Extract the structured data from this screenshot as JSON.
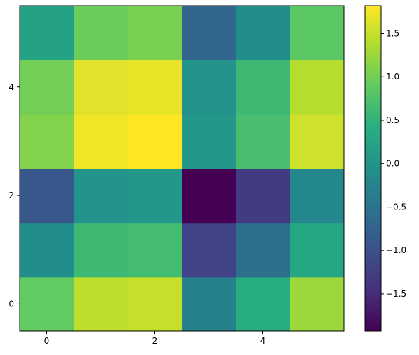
{
  "chart_data": {
    "type": "heatmap",
    "title": "",
    "xlabel": "",
    "ylabel": "",
    "colormap": "viridis",
    "origin": "lower",
    "grid": false,
    "x_ticks": [
      "0",
      "2",
      "4"
    ],
    "y_ticks": [
      "0",
      "2",
      "4"
    ],
    "colorbar": {
      "range": [
        -1.93,
        1.82
      ],
      "tick_labels": [
        "−1.5",
        "−1.0",
        "−0.5",
        "0.0",
        "0.5",
        "1.0",
        "1.5"
      ],
      "tick_values": [
        -1.5,
        -1.0,
        -0.5,
        0.0,
        0.5,
        1.0,
        1.5
      ]
    },
    "rows": [
      [
        0.9,
        1.45,
        1.5,
        -0.3,
        0.4,
        1.25
      ],
      [
        -0.1,
        0.6,
        0.65,
        -1.2,
        -0.55,
        0.3
      ],
      [
        -0.9,
        0.0,
        0.05,
        -1.93,
        -1.3,
        -0.2
      ],
      [
        1.1,
        1.75,
        1.82,
        0.05,
        0.7,
        1.55
      ],
      [
        1.0,
        1.65,
        1.7,
        0.0,
        0.6,
        1.4
      ],
      [
        0.2,
        0.95,
        1.05,
        -0.7,
        -0.1,
        0.85
      ]
    ]
  }
}
